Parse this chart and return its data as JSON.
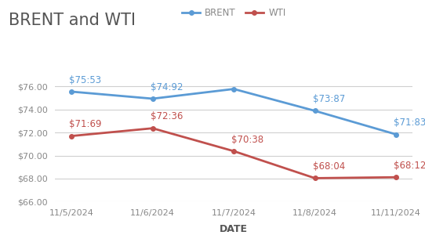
{
  "title": "BRENT and WTI",
  "xlabel": "DATE",
  "dates": [
    "11/5/2024",
    "11/6/2024",
    "11/7/2024",
    "11/8/2024",
    "11/11/2024"
  ],
  "brent": [
    75.53,
    74.92,
    75.76,
    73.87,
    71.83
  ],
  "wti": [
    71.69,
    72.36,
    70.38,
    68.04,
    68.12
  ],
  "brent_labels": [
    "$75:53",
    "$74:92",
    "",
    "$73:87",
    "$71:83"
  ],
  "wti_labels": [
    "$71:69",
    "$72:36",
    "$70:38",
    "$68:04",
    "$68:12"
  ],
  "brent_color": "#5B9BD5",
  "wti_color": "#C0504D",
  "ylim": [
    66.0,
    77.5
  ],
  "yticks": [
    66.0,
    68.0,
    70.0,
    72.0,
    74.0,
    76.0
  ],
  "background_color": "#ffffff",
  "grid_color": "#d0d0d0",
  "title_fontsize": 15,
  "label_fontsize": 8.5,
  "axis_label_fontsize": 8,
  "legend_fontsize": 8.5,
  "tick_color": "#888888",
  "title_color": "#555555",
  "xlabel_color": "#555555"
}
